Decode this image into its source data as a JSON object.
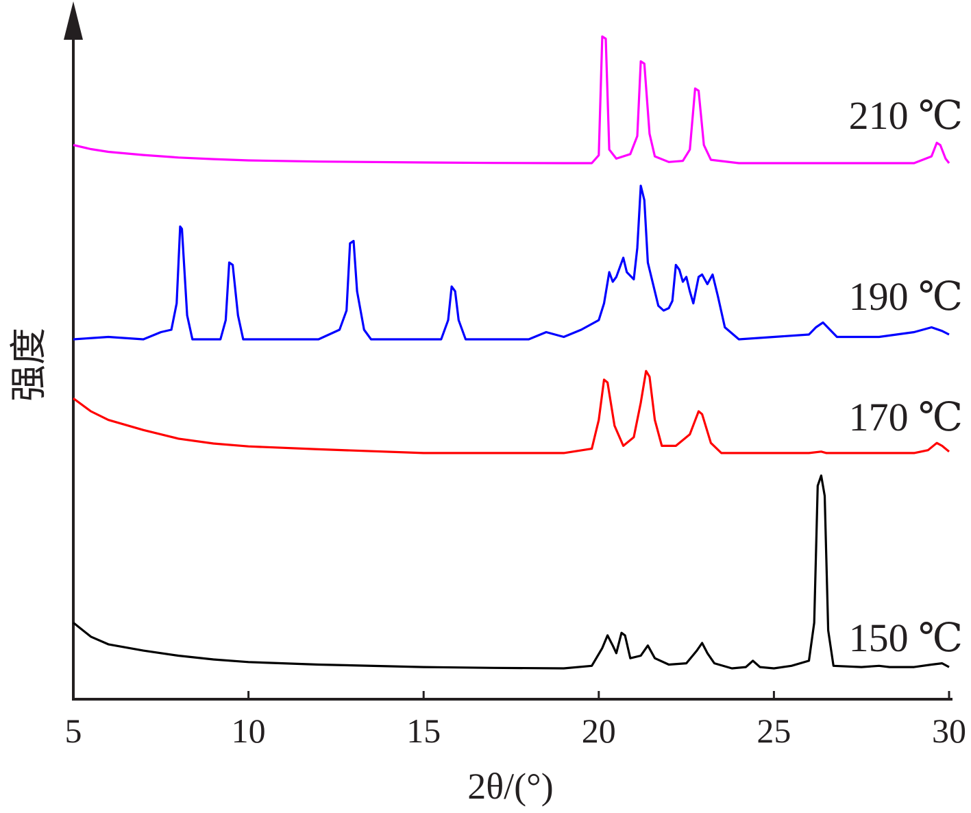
{
  "chart_data": {
    "type": "line",
    "xlabel": "2θ/(°)",
    "ylabel": "强度",
    "xlim": [
      5,
      30
    ],
    "x_ticks": [
      "5",
      "10",
      "15",
      "20",
      "25",
      "30"
    ],
    "grid": false,
    "legend": "inline labels at right end of each curve",
    "series": [
      {
        "name": "210 ℃",
        "color": "#ff00ff",
        "points": [
          [
            5,
            0.8
          ],
          [
            5.5,
            0.62
          ],
          [
            6,
            0.5
          ],
          [
            7,
            0.36
          ],
          [
            8,
            0.25
          ],
          [
            9,
            0.18
          ],
          [
            10,
            0.12
          ],
          [
            12,
            0.07
          ],
          [
            15,
            0.03
          ],
          [
            17,
            0.01
          ],
          [
            19,
            0
          ],
          [
            19.8,
            0
          ],
          [
            20.0,
            0.35
          ],
          [
            20.1,
            5.6
          ],
          [
            20.2,
            5.5
          ],
          [
            20.3,
            0.6
          ],
          [
            20.5,
            0.2
          ],
          [
            20.9,
            0.4
          ],
          [
            21.1,
            1.2
          ],
          [
            21.2,
            4.5
          ],
          [
            21.3,
            4.4
          ],
          [
            21.45,
            1.3
          ],
          [
            21.6,
            0.3
          ],
          [
            22.0,
            0.05
          ],
          [
            22.4,
            0.1
          ],
          [
            22.6,
            0.6
          ],
          [
            22.75,
            3.3
          ],
          [
            22.85,
            3.2
          ],
          [
            23.0,
            0.8
          ],
          [
            23.2,
            0.15
          ],
          [
            24,
            0
          ],
          [
            27,
            0
          ],
          [
            29,
            0
          ],
          [
            29.5,
            0.3
          ],
          [
            29.65,
            0.9
          ],
          [
            29.75,
            0.8
          ],
          [
            29.9,
            0.2
          ],
          [
            30,
            0
          ]
        ]
      },
      {
        "name": "190 ℃",
        "color": "#0000ff",
        "points": [
          [
            5,
            0
          ],
          [
            6,
            0.1
          ],
          [
            7,
            0
          ],
          [
            7.5,
            0.3
          ],
          [
            7.8,
            0.4
          ],
          [
            7.95,
            1.5
          ],
          [
            8.05,
            4.7
          ],
          [
            8.1,
            4.6
          ],
          [
            8.25,
            1.0
          ],
          [
            8.4,
            0
          ],
          [
            9.2,
            0
          ],
          [
            9.35,
            0.8
          ],
          [
            9.45,
            3.2
          ],
          [
            9.55,
            3.1
          ],
          [
            9.7,
            1.0
          ],
          [
            9.85,
            0
          ],
          [
            12,
            0
          ],
          [
            12.6,
            0.4
          ],
          [
            12.8,
            1.2
          ],
          [
            12.9,
            4.0
          ],
          [
            13.0,
            4.1
          ],
          [
            13.1,
            2.0
          ],
          [
            13.3,
            0.4
          ],
          [
            13.5,
            0
          ],
          [
            15.5,
            0
          ],
          [
            15.7,
            0.8
          ],
          [
            15.8,
            2.2
          ],
          [
            15.9,
            2.0
          ],
          [
            16.0,
            0.8
          ],
          [
            16.2,
            0
          ],
          [
            18,
            0
          ],
          [
            18.5,
            0.3
          ],
          [
            19,
            0.1
          ],
          [
            19.5,
            0.4
          ],
          [
            20,
            0.8
          ],
          [
            20.15,
            1.5
          ],
          [
            20.3,
            2.8
          ],
          [
            20.4,
            2.4
          ],
          [
            20.5,
            2.6
          ],
          [
            20.7,
            3.4
          ],
          [
            20.8,
            2.8
          ],
          [
            21.0,
            2.5
          ],
          [
            21.1,
            3.8
          ],
          [
            21.2,
            6.4
          ],
          [
            21.3,
            5.8
          ],
          [
            21.4,
            3.2
          ],
          [
            21.6,
            2.0
          ],
          [
            21.7,
            1.4
          ],
          [
            21.85,
            1.2
          ],
          [
            22.0,
            1.3
          ],
          [
            22.1,
            1.6
          ],
          [
            22.2,
            3.1
          ],
          [
            22.3,
            2.9
          ],
          [
            22.4,
            2.4
          ],
          [
            22.5,
            2.6
          ],
          [
            22.6,
            2.0
          ],
          [
            22.7,
            1.5
          ],
          [
            22.85,
            2.6
          ],
          [
            22.95,
            2.7
          ],
          [
            23.1,
            2.3
          ],
          [
            23.25,
            2.7
          ],
          [
            23.4,
            1.8
          ],
          [
            23.6,
            0.5
          ],
          [
            24,
            0
          ],
          [
            26,
            0.2
          ],
          [
            26.2,
            0.5
          ],
          [
            26.4,
            0.7
          ],
          [
            26.6,
            0.4
          ],
          [
            26.8,
            0.1
          ],
          [
            28,
            0.1
          ],
          [
            29,
            0.3
          ],
          [
            29.5,
            0.5
          ],
          [
            29.8,
            0.35
          ],
          [
            30,
            0.2
          ]
        ]
      },
      {
        "name": "170 ℃",
        "color": "#ff0000",
        "points": [
          [
            5,
            1.95
          ],
          [
            5.5,
            1.5
          ],
          [
            6,
            1.2
          ],
          [
            7,
            0.85
          ],
          [
            8,
            0.55
          ],
          [
            9,
            0.38
          ],
          [
            10,
            0.28
          ],
          [
            12,
            0.18
          ],
          [
            15,
            0.05
          ],
          [
            17,
            0.05
          ],
          [
            19,
            0.05
          ],
          [
            19.8,
            0.2
          ],
          [
            20.0,
            1.2
          ],
          [
            20.15,
            2.6
          ],
          [
            20.25,
            2.5
          ],
          [
            20.45,
            1.0
          ],
          [
            20.7,
            0.3
          ],
          [
            21.0,
            0.6
          ],
          [
            21.2,
            1.8
          ],
          [
            21.35,
            2.9
          ],
          [
            21.45,
            2.7
          ],
          [
            21.6,
            1.2
          ],
          [
            21.8,
            0.3
          ],
          [
            22.2,
            0.3
          ],
          [
            22.6,
            0.7
          ],
          [
            22.85,
            1.5
          ],
          [
            22.95,
            1.4
          ],
          [
            23.2,
            0.4
          ],
          [
            23.5,
            0.05
          ],
          [
            26,
            0.05
          ],
          [
            26.35,
            0.1
          ],
          [
            26.5,
            0.05
          ],
          [
            29,
            0.05
          ],
          [
            29.4,
            0.15
          ],
          [
            29.65,
            0.4
          ],
          [
            29.8,
            0.3
          ],
          [
            30,
            0.1
          ]
        ]
      },
      {
        "name": "150 ℃",
        "color": "#000000",
        "points": [
          [
            5,
            1.8
          ],
          [
            5.5,
            1.25
          ],
          [
            6,
            0.95
          ],
          [
            7,
            0.7
          ],
          [
            8,
            0.5
          ],
          [
            9,
            0.35
          ],
          [
            10,
            0.25
          ],
          [
            12,
            0.15
          ],
          [
            15,
            0.05
          ],
          [
            17,
            0.02
          ],
          [
            19,
            0
          ],
          [
            19.8,
            0.1
          ],
          [
            20.1,
            0.8
          ],
          [
            20.25,
            1.3
          ],
          [
            20.4,
            0.9
          ],
          [
            20.5,
            0.6
          ],
          [
            20.65,
            1.4
          ],
          [
            20.75,
            1.3
          ],
          [
            20.9,
            0.4
          ],
          [
            21.2,
            0.5
          ],
          [
            21.4,
            0.9
          ],
          [
            21.6,
            0.4
          ],
          [
            22.0,
            0.15
          ],
          [
            22.5,
            0.2
          ],
          [
            22.8,
            0.7
          ],
          [
            22.95,
            1.0
          ],
          [
            23.1,
            0.6
          ],
          [
            23.3,
            0.2
          ],
          [
            23.8,
            0
          ],
          [
            24.2,
            0.05
          ],
          [
            24.4,
            0.3
          ],
          [
            24.6,
            0.05
          ],
          [
            25,
            0
          ],
          [
            25.5,
            0.1
          ],
          [
            26.0,
            0.3
          ],
          [
            26.15,
            1.8
          ],
          [
            26.25,
            7.2
          ],
          [
            26.35,
            7.6
          ],
          [
            26.45,
            6.8
          ],
          [
            26.55,
            1.5
          ],
          [
            26.7,
            0.1
          ],
          [
            27.5,
            0.05
          ],
          [
            28.0,
            0.1
          ],
          [
            28.3,
            0.05
          ],
          [
            29,
            0.05
          ],
          [
            29.5,
            0.15
          ],
          [
            29.8,
            0.2
          ],
          [
            30,
            0.05
          ]
        ]
      }
    ],
    "axis_color": "#231f20"
  }
}
